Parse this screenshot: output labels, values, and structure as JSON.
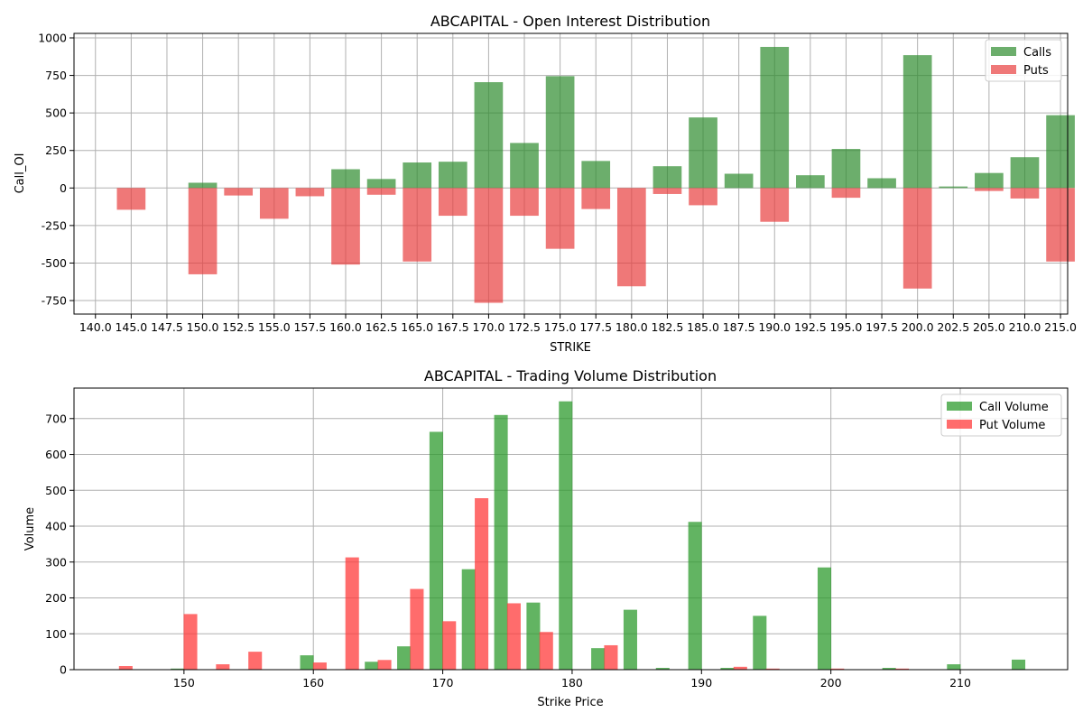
{
  "chart_data": [
    {
      "type": "bar",
      "title": "ABCAPITAL - Open Interest Distribution",
      "xlabel": "STRIKE",
      "ylabel": "Call_OI",
      "ylim": [
        -840,
        1030
      ],
      "yticks": [
        -750,
        -500,
        -250,
        0,
        250,
        500,
        750,
        1000
      ],
      "grid": true,
      "legend_position": "top-right",
      "categories": [
        "140.0",
        "145.0",
        "147.5",
        "150.0",
        "152.5",
        "155.0",
        "157.5",
        "160.0",
        "162.5",
        "165.0",
        "167.5",
        "170.0",
        "172.5",
        "175.0",
        "177.5",
        "180.0",
        "182.5",
        "185.0",
        "187.5",
        "190.0",
        "192.5",
        "195.0",
        "197.5",
        "200.0",
        "202.5",
        "205.0",
        "210.0",
        "215.0"
      ],
      "series": [
        {
          "name": "Calls",
          "color": "#2e8b2e",
          "opacity": 0.7,
          "values": [
            0,
            0,
            0,
            35,
            0,
            0,
            0,
            125,
            60,
            170,
            175,
            705,
            300,
            745,
            180,
            0,
            145,
            470,
            95,
            940,
            85,
            260,
            65,
            885,
            10,
            100,
            205,
            485
          ]
        },
        {
          "name": "Puts",
          "color": "#e83f3f",
          "opacity": 0.7,
          "values": [
            0,
            -145,
            0,
            -575,
            -50,
            -205,
            -55,
            -510,
            -45,
            -490,
            -185,
            -765,
            -185,
            -405,
            -140,
            -655,
            -40,
            -115,
            0,
            -225,
            0,
            -65,
            0,
            -670,
            0,
            -20,
            -70,
            -490
          ]
        }
      ]
    },
    {
      "type": "bar",
      "title": "ABCAPITAL - Trading Volume Distribution",
      "xlabel": "Strike Price",
      "ylabel": "Volume",
      "xlim": [
        141.5,
        218.3
      ],
      "ylim": [
        0,
        785
      ],
      "xticks": [
        150,
        160,
        170,
        180,
        190,
        200,
        210
      ],
      "yticks": [
        0,
        100,
        200,
        300,
        400,
        500,
        600,
        700
      ],
      "grid": true,
      "legend_position": "top-right",
      "x": [
        145,
        147.5,
        150,
        152.5,
        155,
        157.5,
        160,
        162.5,
        165,
        167.5,
        170,
        172.5,
        175,
        177.5,
        180,
        182.5,
        185,
        187.5,
        190,
        192.5,
        195,
        197.5,
        200,
        202.5,
        205,
        210,
        215
      ],
      "series": [
        {
          "name": "Call Volume",
          "color": "#2e9b2e",
          "opacity": 0.75,
          "values": [
            0,
            0,
            3,
            0,
            0,
            0,
            40,
            0,
            22,
            65,
            663,
            280,
            710,
            187,
            748,
            60,
            167,
            5,
            412,
            5,
            150,
            0,
            285,
            0,
            5,
            15,
            28
          ]
        },
        {
          "name": "Put Volume",
          "color": "#ff3b3b",
          "opacity": 0.75,
          "values": [
            10,
            0,
            155,
            15,
            50,
            0,
            20,
            313,
            27,
            225,
            135,
            478,
            185,
            105,
            0,
            68,
            0,
            0,
            0,
            8,
            3,
            0,
            3,
            0,
            3,
            0,
            0
          ]
        }
      ]
    }
  ]
}
